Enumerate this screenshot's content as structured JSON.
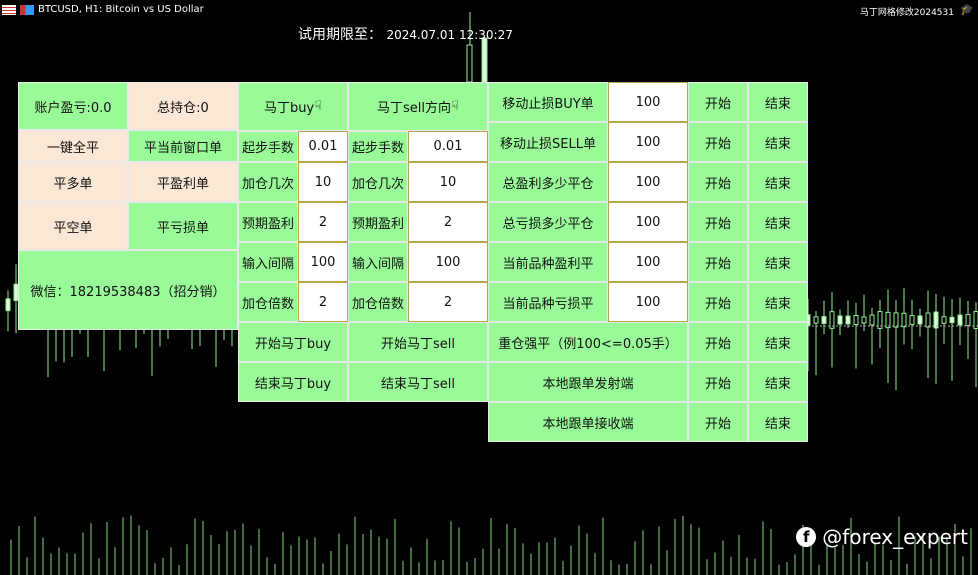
{
  "window": {
    "title": "BTCUSD, H1:  Bitcoin vs US Dollar",
    "top_right": "马丁网格修改2024531"
  },
  "trial": {
    "label": "试用期限至：",
    "date": "2024.07.01 12:30:27"
  },
  "left": {
    "profit": "账户盈亏:0.0",
    "positions": "总持仓:0",
    "close_all": "一键全平",
    "close_window": "平当前窗口单",
    "close_buy": "平多单",
    "close_profit": "平盈利单",
    "close_sell": "平空单",
    "close_loss": "平亏损单",
    "wechat": "微信：18219538483（招分销）"
  },
  "martin": {
    "buy_header": "马丁buy",
    "sell_header": "马丁sell方向",
    "rows": [
      {
        "label": "起步手数",
        "buy": "0.01",
        "sell": "0.01"
      },
      {
        "label": "加仓几次",
        "buy": "10",
        "sell": "10"
      },
      {
        "label": "预期盈利",
        "buy": "2",
        "sell": "2"
      },
      {
        "label": "输入间隔",
        "buy": "100",
        "sell": "100"
      },
      {
        "label": "加仓倍数",
        "buy": "2",
        "sell": "2"
      }
    ],
    "start_buy": "开始马丁buy",
    "start_sell": "开始马丁sell",
    "stop_buy": "结束马丁buy",
    "stop_sell": "结束马丁sell"
  },
  "right": {
    "start": "开始",
    "stop": "结束",
    "rows": [
      {
        "label": "移动止损BUY单",
        "value": "100"
      },
      {
        "label": "移动止损SELL单",
        "value": "100"
      },
      {
        "label": "总盈利多少平仓",
        "value": "100"
      },
      {
        "label": "总亏损多少平仓",
        "value": "100"
      },
      {
        "label": "当前品种盈利平",
        "value": "100"
      },
      {
        "label": "当前品种亏损平",
        "value": "100"
      },
      {
        "label": "重仓强平（例100<=0.05手）"
      },
      {
        "label": "本地跟单发射端"
      },
      {
        "label": "本地跟单接收端"
      }
    ]
  },
  "watermark": "@forex_expert",
  "colors": {
    "panel": "#98fb98",
    "beige": "#fae7d5",
    "candle": "#90ee90"
  }
}
